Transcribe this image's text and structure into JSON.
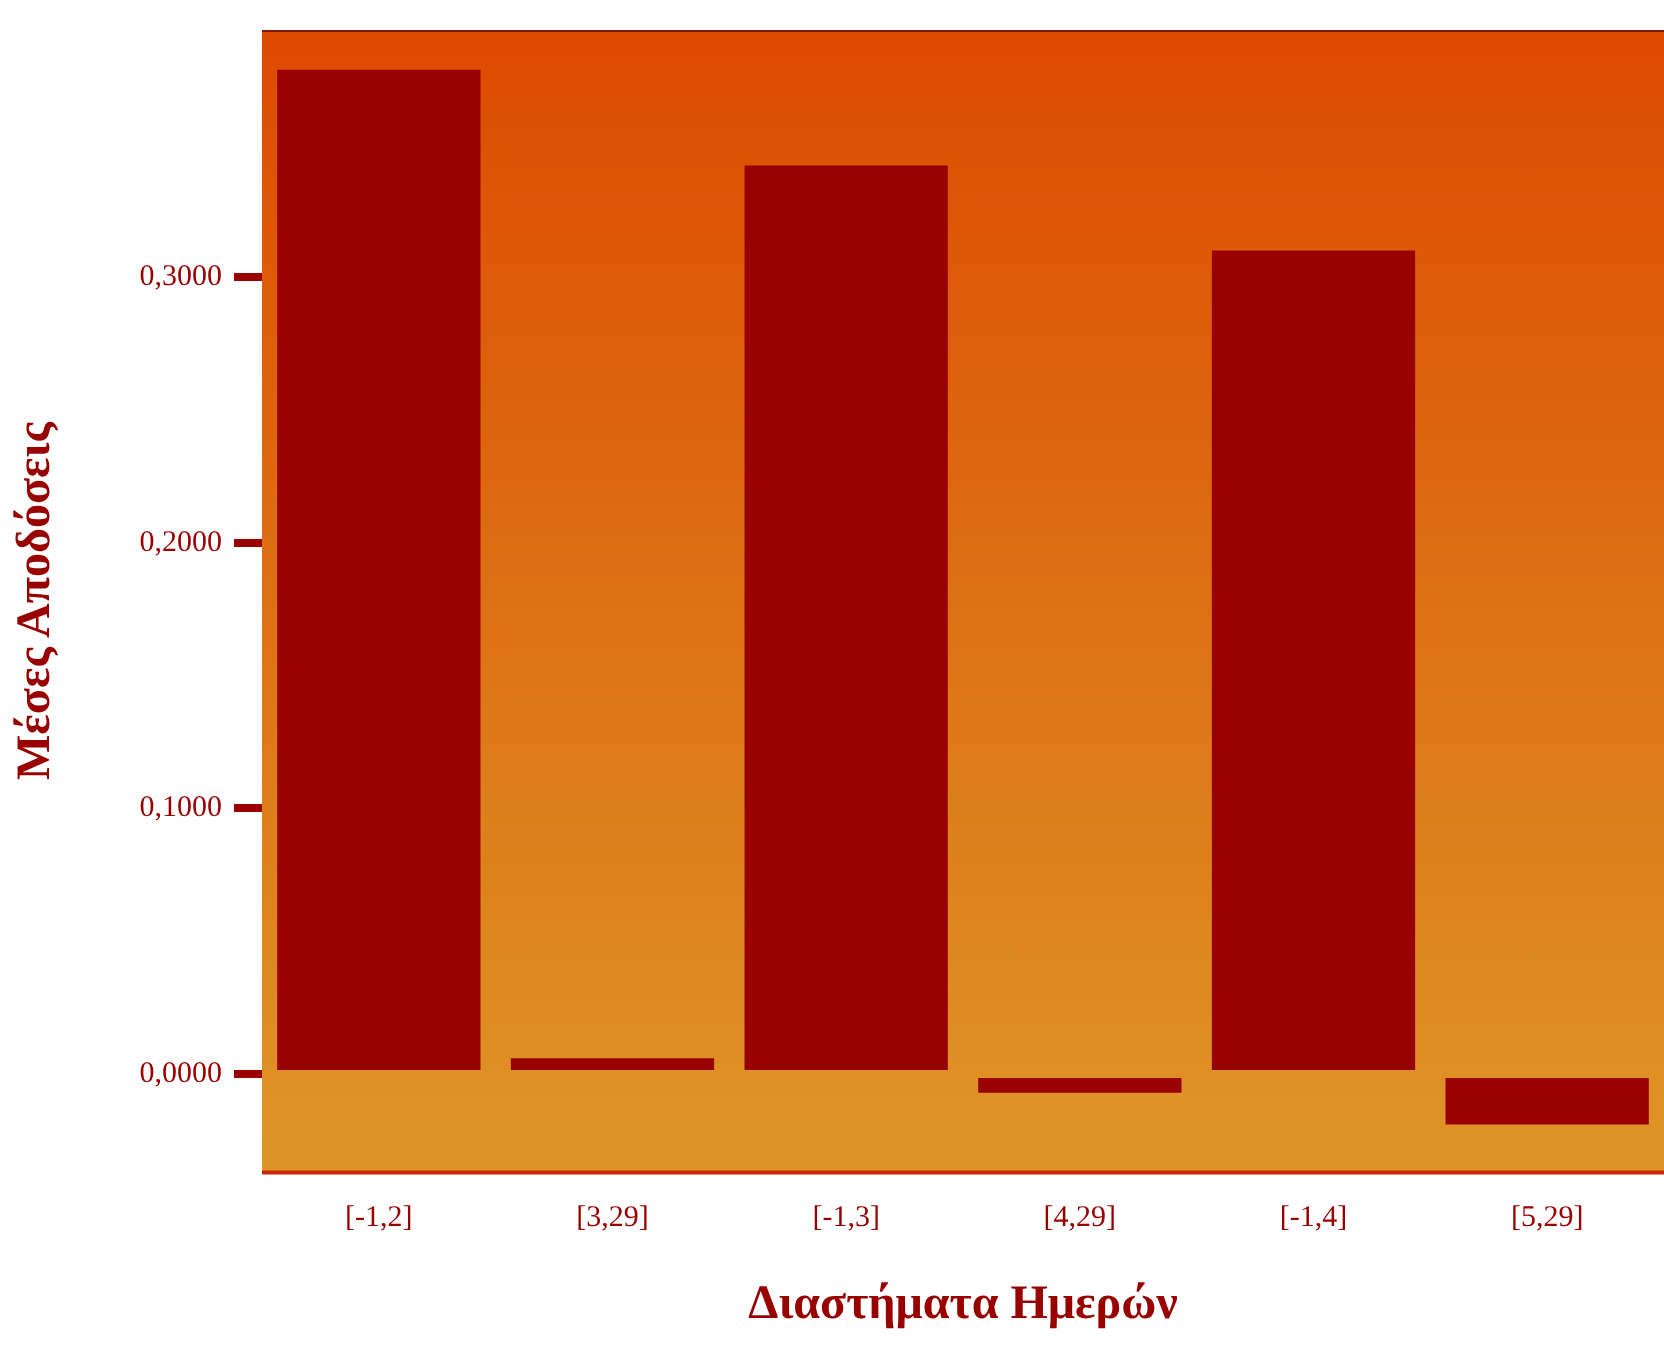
{
  "chart_data": {
    "type": "bar",
    "xlabel": "Διαστήματα Ημερών",
    "ylabel": "Μέσες Αποδόσεις",
    "categories": [
      "[-1,2]",
      "[3,29]",
      "[-1,3]",
      "[4,29]",
      "[-1,4]",
      "[5,29]"
    ],
    "values": [
      0.378,
      0.006,
      0.342,
      -0.007,
      0.31,
      -0.019
    ],
    "color": "#990000",
    "ylim": [
      -0.037,
      0.393
    ],
    "yticks": [
      {
        "value": 0,
        "label": "0,0000"
      },
      {
        "value": 0.1,
        "label": "0,1000"
      },
      {
        "value": 0.2,
        "label": "0,2000"
      },
      {
        "value": 0.3,
        "label": "0,3000"
      }
    ],
    "grid": false
  }
}
